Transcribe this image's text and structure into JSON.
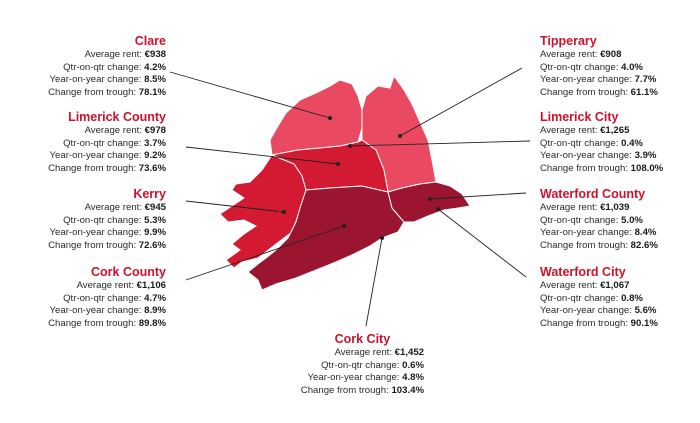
{
  "colors": {
    "heading": "#d0112b",
    "light_region": "#e94a62",
    "mid_region": "#d31a32",
    "dark_region": "#9b1530",
    "leader_line": "#222222"
  },
  "labels": {
    "avg": "Average rent:",
    "qoq": "Qtr-on-qtr change:",
    "yoy": "Year-on-year change:",
    "trough": "Change from trough:"
  },
  "regions": {
    "clare": {
      "name": "Clare",
      "rent": "€938",
      "qoq": "4.2%",
      "yoy": "8.5%",
      "trough": "78.1%"
    },
    "limerick_county": {
      "name": "Limerick County",
      "rent": "€978",
      "qoq": "3.7%",
      "yoy": "9.2%",
      "trough": "73.6%"
    },
    "kerry": {
      "name": "Kerry",
      "rent": "€945",
      "qoq": "5.3%",
      "yoy": "9.9%",
      "trough": "72.6%"
    },
    "cork_county": {
      "name": "Cork County",
      "rent": "€1,106",
      "qoq": "4.7%",
      "yoy": "8.9%",
      "trough": "89.8%"
    },
    "cork_city": {
      "name": "Cork City",
      "rent": "€1,452",
      "qoq": "0.6%",
      "yoy": "4.8%",
      "trough": "103.4%"
    },
    "tipperary": {
      "name": "Tipperary",
      "rent": "€908",
      "qoq": "4.0%",
      "yoy": "7.7%",
      "trough": "61.1%"
    },
    "limerick_city": {
      "name": "Limerick City",
      "rent": "€1,265",
      "qoq": "0.4%",
      "yoy": "3.9%",
      "trough": "108.0%"
    },
    "waterford_county": {
      "name": "Waterford County",
      "rent": "€1,039",
      "qoq": "5.0%",
      "yoy": "8.4%",
      "trough": "82.6%"
    },
    "waterford_city": {
      "name": "Waterford City",
      "rent": "€1,067",
      "qoq": "0.8%",
      "yoy": "5.6%",
      "trough": "90.1%"
    }
  }
}
